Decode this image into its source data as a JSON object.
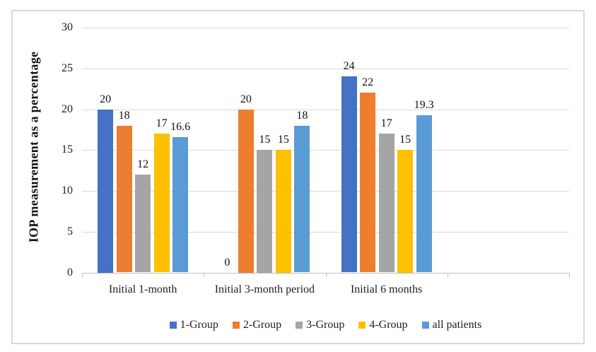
{
  "chart_data": {
    "type": "bar",
    "title": "",
    "xlabel": "",
    "ylabel": "IOP measurement as a percentage",
    "categories": [
      "Initial 1-month",
      "Initial 3-month period",
      "Initial 6 months"
    ],
    "empty_trailing_category_slots": 1,
    "series": [
      {
        "name": "1-Group",
        "color": "#4472C4",
        "values": [
          20,
          0,
          24
        ]
      },
      {
        "name": "2-Group",
        "color": "#ED7D31",
        "values": [
          18,
          20,
          22
        ]
      },
      {
        "name": "3-Group",
        "color": "#A5A5A5",
        "values": [
          12,
          15,
          17
        ]
      },
      {
        "name": "4-Group",
        "color": "#FFC000",
        "values": [
          17,
          15,
          15
        ]
      },
      {
        "name": "all patients",
        "color": "#5B9BD5",
        "values": [
          16.6,
          18,
          19.3
        ]
      }
    ],
    "data_labels": [
      [
        "20",
        "18",
        "12",
        "17",
        "16.6"
      ],
      [
        "0",
        "20",
        "15",
        "15",
        "18"
      ],
      [
        "24",
        "22",
        "17",
        "15",
        "19.3"
      ]
    ],
    "ylim": [
      0,
      30
    ],
    "yticks": [
      0,
      5,
      10,
      15,
      20,
      25,
      30
    ],
    "grid": true,
    "legend_position": "bottom",
    "style": {
      "gridline_color": "#D9D9D9",
      "axis_line_color": "#BFBFBF",
      "frame_border_color": "#D9D9D9",
      "text_color": "#212121",
      "background": "#FFFFFF"
    }
  }
}
